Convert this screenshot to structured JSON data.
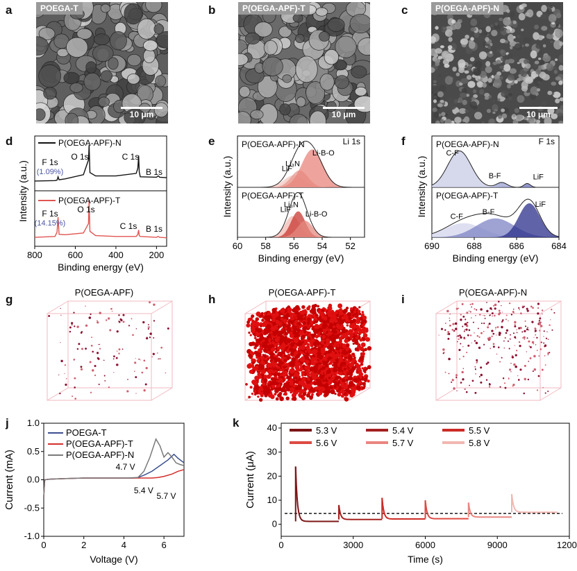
{
  "panel_letters": [
    "a",
    "b",
    "c",
    "d",
    "e",
    "f",
    "g",
    "h",
    "i",
    "j",
    "k"
  ],
  "sem": [
    {
      "tag": "POEGA-T",
      "scale": "10 μm",
      "color": "#5e5e5e"
    },
    {
      "tag": "P(OEGA-APF)-T",
      "scale": "10 μm",
      "color": "#6a6a6a"
    },
    {
      "tag": "P(OEGA-APF)-N",
      "scale": "10 μm",
      "color": "#4a4a4a"
    }
  ],
  "tomo": [
    {
      "title": "P(OEGA-APF)",
      "density": "low"
    },
    {
      "title": "P(OEGA-APF)-T",
      "density": "high"
    },
    {
      "title": "P(OEGA-APF)-N",
      "density": "medium"
    }
  ],
  "chart_data": [
    {
      "type": "line",
      "panel": "d",
      "xlabel": "Binding energy (eV)",
      "ylabel": "Intensity (a.u.)",
      "xlim": [
        800,
        150
      ],
      "xticks": [
        800,
        600,
        400,
        200
      ],
      "series": [
        {
          "name": "P(OEGA-APF)-N",
          "color": "#111111",
          "x": [
            800,
            700,
            690,
            685,
            680,
            650,
            560,
            535,
            532,
            528,
            500,
            400,
            300,
            292,
            288,
            285,
            280,
            200,
            192,
            188,
            185,
            150
          ],
          "y": [
            0.1,
            0.11,
            0.12,
            0.2,
            0.13,
            0.15,
            0.25,
            0.6,
            0.95,
            0.3,
            0.22,
            0.22,
            0.28,
            0.4,
            0.7,
            0.32,
            0.2,
            0.19,
            0.22,
            0.21,
            0.19,
            0.18
          ]
        },
        {
          "name": "P(OEGA-APF)-T",
          "color": "#e05550",
          "x": [
            800,
            700,
            690,
            685,
            680,
            650,
            560,
            535,
            532,
            528,
            500,
            400,
            300,
            292,
            288,
            285,
            280,
            200,
            192,
            188,
            185,
            150
          ],
          "y": [
            0.08,
            0.1,
            0.2,
            0.55,
            0.15,
            0.14,
            0.18,
            0.4,
            0.95,
            0.22,
            0.12,
            0.1,
            0.1,
            0.15,
            0.25,
            0.12,
            0.1,
            0.08,
            0.1,
            0.09,
            0.08,
            0.07
          ]
        }
      ],
      "annotations": [
        {
          "text": "F 1s",
          "sub": "(1.09%)"
        },
        {
          "text": "O 1s"
        },
        {
          "text": "C 1s"
        },
        {
          "text": "B 1s"
        },
        {
          "text": "F 1s",
          "sub": "(14.15%)"
        },
        {
          "text": "O 1s"
        },
        {
          "text": "C 1s"
        },
        {
          "text": "B 1s"
        }
      ]
    },
    {
      "type": "area",
      "panel": "e",
      "xlabel": "Binding energy (eV)",
      "ylabel": "Intensity (a.u.)",
      "xlim": [
        60,
        51
      ],
      "xticks": [
        60,
        58,
        56,
        54,
        52
      ],
      "element": "Li 1s",
      "subplots": [
        {
          "name": "P(OEGA-APF)-N",
          "peaks": [
            {
              "label": "LiF",
              "center": 56.0,
              "height": 0.25,
              "width": 0.7,
              "color": "#f3c5bf"
            },
            {
              "label": "Li3N",
              "center": 55.6,
              "height": 0.35,
              "width": 0.6,
              "color": "#e59a90"
            },
            {
              "label": "Li-B-O",
              "center": 54.7,
              "height": 0.78,
              "width": 0.75,
              "color": "#e8867c"
            }
          ]
        },
        {
          "name": "P(OEGA-APF)-T",
          "peaks": [
            {
              "label": "LiF",
              "center": 56.1,
              "height": 0.45,
              "width": 0.55,
              "color": "#f2b9b3"
            },
            {
              "label": "Li3N",
              "center": 55.7,
              "height": 0.55,
              "width": 0.5,
              "color": "#c83a32"
            },
            {
              "label": "Li-B-O",
              "center": 55.2,
              "height": 0.35,
              "width": 0.55,
              "color": "#e48a80"
            }
          ]
        }
      ]
    },
    {
      "type": "area",
      "panel": "f",
      "xlabel": "Binding energy (eV)",
      "ylabel": "Intensity (a.u.)",
      "xlim": [
        690,
        684
      ],
      "xticks": [
        690,
        688,
        686,
        684
      ],
      "element": "F 1s",
      "subplots": [
        {
          "name": "P(OEGA-APF)-N",
          "peaks": [
            {
              "label": "C-F",
              "center": 688.7,
              "height": 0.75,
              "width": 0.55,
              "color": "#c8cbe6"
            },
            {
              "label": "B-F",
              "center": 686.7,
              "height": 0.1,
              "width": 0.25,
              "color": "#9aa0d0"
            },
            {
              "label": "LiF",
              "center": 685.5,
              "height": 0.08,
              "width": 0.15,
              "color": "#6f76bc"
            }
          ]
        },
        {
          "name": "P(OEGA-APF)-T",
          "peaks": [
            {
              "label": "C-F",
              "center": 688.5,
              "height": 0.3,
              "width": 0.9,
              "color": "#d3d6ec"
            },
            {
              "label": "B-F",
              "center": 687.0,
              "height": 0.4,
              "width": 0.9,
              "color": "#7d84c4"
            },
            {
              "label": "LiF",
              "center": 685.4,
              "height": 0.72,
              "width": 0.5,
              "color": "#2b2f8a"
            }
          ]
        }
      ]
    },
    {
      "type": "line",
      "panel": "j",
      "xlabel": "Voltage (V)",
      "ylabel": "Current (mA)",
      "xlim": [
        0,
        7
      ],
      "ylim": [
        -1.0,
        1.0
      ],
      "xticks": [
        0,
        2,
        4,
        6
      ],
      "yticks": [
        -1.0,
        -0.5,
        0.0,
        0.5,
        1.0
      ],
      "series": [
        {
          "name": "POEGA-T",
          "color": "#3c4f8f",
          "x": [
            0,
            0.05,
            0.3,
            1,
            2,
            3,
            4,
            4.5,
            4.7,
            5.0,
            5.4,
            5.8,
            6.2,
            6.5,
            6.7,
            7.0
          ],
          "y": [
            -0.3,
            0,
            0.01,
            0.02,
            0.03,
            0.03,
            0.03,
            0.03,
            0.04,
            0.08,
            0.15,
            0.25,
            0.35,
            0.45,
            0.38,
            0.3
          ]
        },
        {
          "name": "P(OEGA-APF)-T",
          "color": "#d42d2a",
          "x": [
            0,
            0.05,
            0.3,
            1,
            2,
            3,
            4,
            5,
            5.4,
            5.7,
            6.0,
            6.4,
            6.7,
            7.0
          ],
          "y": [
            -0.3,
            0,
            0.01,
            0.02,
            0.03,
            0.03,
            0.03,
            0.03,
            0.03,
            0.04,
            0.06,
            0.1,
            0.15,
            0.18
          ]
        },
        {
          "name": "P(OEGA-APF)-N",
          "color": "#7a7a7a",
          "x": [
            0,
            0.05,
            0.3,
            1,
            2,
            3,
            4,
            4.7,
            5.0,
            5.3,
            5.6,
            5.8,
            6.0,
            6.2,
            6.4,
            6.6,
            6.8,
            7.0
          ],
          "y": [
            -0.3,
            0,
            0.01,
            0.02,
            0.03,
            0.03,
            0.03,
            0.04,
            0.15,
            0.4,
            0.72,
            0.6,
            0.4,
            0.48,
            0.4,
            0.3,
            0.27,
            0.25
          ]
        }
      ],
      "annotations": [
        {
          "text": "4.7 V",
          "x": 4.7
        },
        {
          "text": "5.4 V",
          "x": 5.4
        },
        {
          "text": "5.7 V",
          "x": 5.7
        }
      ]
    },
    {
      "type": "line",
      "panel": "k",
      "xlabel": "Time (s)",
      "ylabel": "Current (μA)",
      "xlim": [
        0,
        12000
      ],
      "ylim": [
        -5,
        42
      ],
      "xticks": [
        0,
        3000,
        6000,
        9000,
        12000
      ],
      "yticks": [
        0,
        10,
        20,
        30,
        40
      ],
      "reference_line": 4.5,
      "series": [
        {
          "name": "5.3 V",
          "color": "#7d1416",
          "t0": 600,
          "t1": 2400,
          "peak": 24,
          "end": 1.2
        },
        {
          "name": "5.4 V",
          "color": "#a3201f",
          "t0": 2400,
          "t1": 4200,
          "peak": 8,
          "end": 2.0
        },
        {
          "name": "5.5 V",
          "color": "#cc2b26",
          "t0": 4200,
          "t1": 6000,
          "peak": 11,
          "end": 2.2
        },
        {
          "name": "5.6 V",
          "color": "#dd4a42",
          "t0": 6000,
          "t1": 7800,
          "peak": 10,
          "end": 2.3
        },
        {
          "name": "5.7 V",
          "color": "#ea8580",
          "t0": 7800,
          "t1": 9600,
          "peak": 9,
          "end": 3.0
        },
        {
          "name": "5.8 V",
          "color": "#f2b7b2",
          "t0": 9600,
          "t1": 11500,
          "peak": 12.5,
          "end": 5.0
        }
      ]
    }
  ]
}
